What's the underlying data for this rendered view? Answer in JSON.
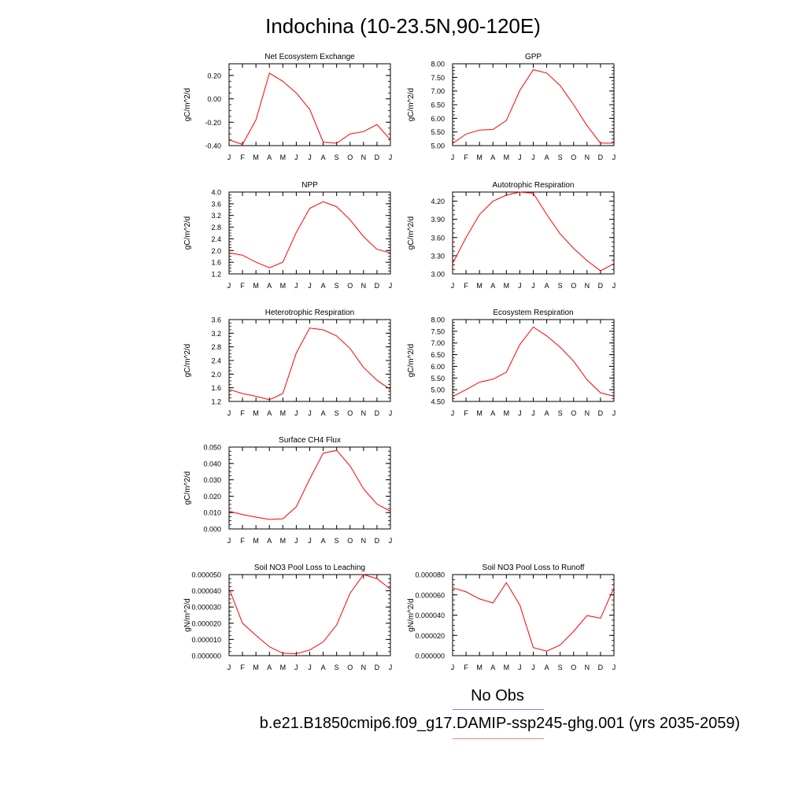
{
  "title": "Indochina (10-23.5N,90-120E)",
  "legend": {
    "obs_label": "No Obs",
    "obs_color": "#8080ff",
    "case_label": "b.e21.B1850cmip6.f09_g17.DAMIP-ssp245-ghg.001 (yrs 2035-2059)",
    "case_color": "#ff8080"
  },
  "chart_data": [
    {
      "type": "line",
      "title": "Net Ecosystem Exchange",
      "ylabel": "gC/m^2/d",
      "x": [
        "J",
        "F",
        "M",
        "A",
        "M",
        "J",
        "J",
        "A",
        "S",
        "O",
        "N",
        "D",
        "J"
      ],
      "ylim": [
        -0.4,
        0.3
      ],
      "yticks": [
        "-0.40",
        "-0.20",
        "0.00",
        "0.20"
      ],
      "series": [
        {
          "color": "#ff0000",
          "values": [
            -0.35,
            -0.39,
            -0.18,
            0.22,
            0.15,
            0.05,
            -0.09,
            -0.37,
            -0.38,
            -0.3,
            -0.28,
            -0.22,
            -0.35
          ]
        }
      ]
    },
    {
      "type": "line",
      "title": "GPP",
      "ylabel": "gC/m^2/d",
      "x": [
        "J",
        "F",
        "M",
        "A",
        "M",
        "J",
        "J",
        "A",
        "S",
        "O",
        "N",
        "D",
        "J"
      ],
      "ylim": [
        5.0,
        8.0
      ],
      "yticks": [
        "5.00",
        "5.50",
        "6.00",
        "6.50",
        "7.00",
        "7.50",
        "8.00"
      ],
      "series": [
        {
          "color": "#ff0000",
          "values": [
            5.08,
            5.42,
            5.57,
            5.59,
            5.92,
            7.02,
            7.78,
            7.66,
            7.2,
            6.5,
            5.73,
            5.09,
            5.09
          ]
        }
      ]
    },
    {
      "type": "line",
      "title": "NPP",
      "ylabel": "gC/m^2/d",
      "x": [
        "J",
        "F",
        "M",
        "A",
        "M",
        "J",
        "J",
        "A",
        "S",
        "O",
        "N",
        "D",
        "J"
      ],
      "ylim": [
        1.2,
        4.0
      ],
      "yticks": [
        "1.2",
        "1.6",
        "2.0",
        "2.4",
        "2.8",
        "3.2",
        "3.6",
        "4.0"
      ],
      "series": [
        {
          "color": "#ff0000",
          "values": [
            1.92,
            1.84,
            1.6,
            1.41,
            1.6,
            2.62,
            3.44,
            3.67,
            3.5,
            3.05,
            2.48,
            2.04,
            1.92
          ]
        }
      ]
    },
    {
      "type": "line",
      "title": "Autotrophic Respiration",
      "ylabel": "gC/m^2/d",
      "x": [
        "J",
        "F",
        "M",
        "A",
        "M",
        "J",
        "J",
        "A",
        "S",
        "O",
        "N",
        "D",
        "J"
      ],
      "ylim": [
        3.0,
        4.35
      ],
      "yticks": [
        "3.00",
        "3.30",
        "3.60",
        "3.90",
        "4.20"
      ],
      "series": [
        {
          "color": "#ff0000",
          "values": [
            3.17,
            3.6,
            3.98,
            4.2,
            4.3,
            4.35,
            4.33,
            3.98,
            3.66,
            3.42,
            3.22,
            3.05,
            3.17
          ]
        }
      ]
    },
    {
      "type": "line",
      "title": "Heterotrophic Respiration",
      "ylabel": "gC/m^2/d",
      "x": [
        "J",
        "F",
        "M",
        "A",
        "M",
        "J",
        "J",
        "A",
        "S",
        "O",
        "N",
        "D",
        "J"
      ],
      "ylim": [
        1.2,
        3.6
      ],
      "yticks": [
        "1.2",
        "1.6",
        "2.0",
        "2.4",
        "2.8",
        "3.2",
        "3.6"
      ],
      "series": [
        {
          "color": "#ff0000",
          "values": [
            1.55,
            1.43,
            1.35,
            1.25,
            1.43,
            2.62,
            3.35,
            3.3,
            3.12,
            2.75,
            2.2,
            1.82,
            1.55
          ]
        }
      ]
    },
    {
      "type": "line",
      "title": "Ecosystem Respiration",
      "ylabel": "gC/m^2/d",
      "x": [
        "J",
        "F",
        "M",
        "A",
        "M",
        "J",
        "J",
        "A",
        "S",
        "O",
        "N",
        "D",
        "J"
      ],
      "ylim": [
        4.5,
        8.0
      ],
      "yticks": [
        "4.50",
        "5.00",
        "5.50",
        "6.00",
        "6.50",
        "7.00",
        "7.50",
        "8.00"
      ],
      "series": [
        {
          "color": "#ff0000",
          "values": [
            4.71,
            5.0,
            5.32,
            5.45,
            5.75,
            6.93,
            7.68,
            7.3,
            6.82,
            6.22,
            5.43,
            4.87,
            4.72
          ]
        }
      ]
    },
    {
      "type": "line",
      "title": "Surface CH4 Flux",
      "ylabel": "gC/m^2/d",
      "x": [
        "J",
        "F",
        "M",
        "A",
        "M",
        "J",
        "J",
        "A",
        "S",
        "O",
        "N",
        "D",
        "J"
      ],
      "ylim": [
        0.0,
        0.05
      ],
      "yticks": [
        "0.000",
        "0.010",
        "0.020",
        "0.030",
        "0.040",
        "0.050"
      ],
      "series": [
        {
          "color": "#ff0000",
          "values": [
            0.0108,
            0.0088,
            0.0072,
            0.0058,
            0.0062,
            0.0135,
            0.0305,
            0.0463,
            0.048,
            0.0385,
            0.0245,
            0.0152,
            0.0108
          ]
        }
      ]
    },
    {
      "type": "line",
      "title": "Soil NO3 Pool Loss to Leaching",
      "ylabel": "gN/m^2/d",
      "x": [
        "J",
        "F",
        "M",
        "A",
        "M",
        "J",
        "J",
        "A",
        "S",
        "O",
        "N",
        "D",
        "J"
      ],
      "ylim": [
        0.0,
        5e-05
      ],
      "yticks": [
        "0.000000",
        "0.000010",
        "0.000020",
        "0.000030",
        "0.000040",
        "0.000050"
      ],
      "series": [
        {
          "color": "#ff0000",
          "values": [
            4.15e-05,
            2e-05,
            1.25e-05,
            5.5e-06,
            1.5e-06,
            1.2e-06,
            3.5e-06,
            8.5e-06,
            1.9e-05,
            3.85e-05,
            5e-05,
            4.75e-05,
            4.1e-05
          ]
        }
      ]
    },
    {
      "type": "line",
      "title": "Soil NO3 Pool Loss to Runoff",
      "ylabel": "gN/m^2/d",
      "x": [
        "J",
        "F",
        "M",
        "A",
        "M",
        "J",
        "J",
        "A",
        "S",
        "O",
        "N",
        "D",
        "J"
      ],
      "ylim": [
        0.0,
        8e-05
      ],
      "yticks": [
        "0.000000",
        "0.000020",
        "0.000040",
        "0.000060",
        "0.000080"
      ],
      "series": [
        {
          "color": "#ff0000",
          "values": [
            6.7e-05,
            6.3e-05,
            5.6e-05,
            5.2e-05,
            7.2e-05,
            5e-05,
            8e-06,
            4.5e-06,
            1.05e-05,
            2.4e-05,
            3.95e-05,
            3.7e-05,
            6.7e-05
          ]
        }
      ]
    }
  ]
}
